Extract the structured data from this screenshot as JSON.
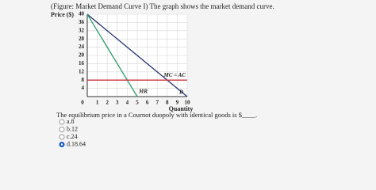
{
  "chart_data": {
    "type": "line",
    "title": "(Figure: Market Demand Curve I) The graph shows the market demand curve.",
    "y_label": "Price ($)",
    "x_label": "Quantity",
    "xlim": [
      0,
      10
    ],
    "xticks": [
      0,
      1,
      2,
      3,
      4,
      5,
      6,
      7,
      8,
      9,
      10
    ],
    "ylim": [
      0,
      40
    ],
    "yticks": [
      4,
      8,
      12,
      16,
      20,
      24,
      28,
      32,
      36,
      40
    ],
    "grid": true,
    "series": [
      {
        "name": "D",
        "color": "#23306e",
        "x": [
          0,
          10
        ],
        "values": [
          40,
          0
        ]
      },
      {
        "name": "MR",
        "color": "#2e9e6e",
        "x": [
          0,
          5
        ],
        "values": [
          40,
          0
        ]
      },
      {
        "name": "MC = AC",
        "color": "#c8343a",
        "x": [
          0,
          10
        ],
        "values": [
          8,
          8
        ]
      }
    ]
  },
  "question": {
    "text": "The equilibrium price in a Cournot duopoly with identical goods is $____.",
    "options": [
      "a.8",
      "b.12",
      "c.24",
      "d.18.64"
    ],
    "selected": 3
  }
}
